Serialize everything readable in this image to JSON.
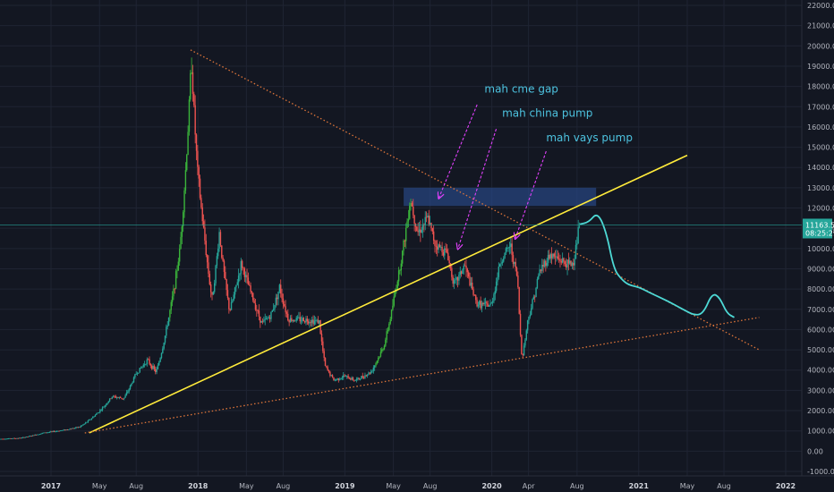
{
  "chart_data": {
    "type": "candlestick",
    "colors": {
      "background": "#131722",
      "grid": "#1f2433",
      "up": "#26a69a",
      "up_bright": "#3bb53b",
      "down": "#ef5350",
      "yellow_trend": "#ffeb3b",
      "dotted_trend": "#e0763a",
      "box": "#2a4a8c",
      "arrow": "#e040fb",
      "annotation": "#4dc3e0",
      "projection": "#4dd9d5",
      "price_tag": "#26a69a",
      "axis_text": "#b2b5be"
    },
    "y_axis": {
      "min": -1000,
      "max": 22000,
      "ticks": [
        "22000.00",
        "21000.00",
        "20000.00",
        "19000.00",
        "18000.00",
        "17000.00",
        "16000.00",
        "15000.00",
        "14000.00",
        "13000.00",
        "12000.00",
        "11000.00",
        "10000.00",
        "9000.00",
        "8000.00",
        "7000.00",
        "6000.00",
        "5000.00",
        "4000.00",
        "3000.00",
        "2000.00",
        "1000.00",
        "0.00",
        "-1000.00"
      ]
    },
    "x_axis": {
      "ticks": [
        {
          "label": "2017",
          "t": 2017.0,
          "year": true
        },
        {
          "label": "May",
          "t": 2017.33
        },
        {
          "label": "Aug",
          "t": 2017.58
        },
        {
          "label": "2018",
          "t": 2018.0,
          "year": true
        },
        {
          "label": "May",
          "t": 2018.33
        },
        {
          "label": "Aug",
          "t": 2018.58
        },
        {
          "label": "2019",
          "t": 2019.0,
          "year": true
        },
        {
          "label": "May",
          "t": 2019.33
        },
        {
          "label": "Aug",
          "t": 2019.58
        },
        {
          "label": "2020",
          "t": 2020.0,
          "year": true
        },
        {
          "label": "Apr",
          "t": 2020.25
        },
        {
          "label": "Aug",
          "t": 2020.58
        },
        {
          "label": "2021",
          "t": 2021.0,
          "year": true
        },
        {
          "label": "May",
          "t": 2021.33
        },
        {
          "label": "Aug",
          "t": 2021.58
        },
        {
          "label": "2022",
          "t": 2022.0,
          "year": true
        }
      ]
    },
    "price_path": [
      [
        2016.65,
        600
      ],
      [
        2016.8,
        650
      ],
      [
        2016.95,
        900
      ],
      [
        2017.1,
        1050
      ],
      [
        2017.2,
        1200
      ],
      [
        2017.3,
        1750
      ],
      [
        2017.42,
        2700
      ],
      [
        2017.5,
        2600
      ],
      [
        2017.58,
        3800
      ],
      [
        2017.66,
        4500
      ],
      [
        2017.72,
        3900
      ],
      [
        2017.8,
        6400
      ],
      [
        2017.88,
        9900
      ],
      [
        2017.93,
        15000
      ],
      [
        2017.96,
        19400
      ],
      [
        2018.0,
        14000
      ],
      [
        2018.05,
        10500
      ],
      [
        2018.1,
        7500
      ],
      [
        2018.15,
        10800
      ],
      [
        2018.22,
        6900
      ],
      [
        2018.3,
        9300
      ],
      [
        2018.38,
        7500
      ],
      [
        2018.44,
        6300
      ],
      [
        2018.5,
        6700
      ],
      [
        2018.56,
        8100
      ],
      [
        2018.62,
        6500
      ],
      [
        2018.72,
        6500
      ],
      [
        2018.83,
        6400
      ],
      [
        2018.87,
        4200
      ],
      [
        2018.93,
        3500
      ],
      [
        2019.0,
        3700
      ],
      [
        2019.08,
        3500
      ],
      [
        2019.18,
        3900
      ],
      [
        2019.27,
        5200
      ],
      [
        2019.35,
        8000
      ],
      [
        2019.45,
        12500
      ],
      [
        2019.5,
        10800
      ],
      [
        2019.57,
        11500
      ],
      [
        2019.62,
        10200
      ],
      [
        2019.7,
        9800
      ],
      [
        2019.75,
        8200
      ],
      [
        2019.82,
        9200
      ],
      [
        2019.9,
        7300
      ],
      [
        2019.95,
        7200
      ],
      [
        2020.0,
        7200
      ],
      [
        2020.06,
        9300
      ],
      [
        2020.13,
        10200
      ],
      [
        2020.18,
        8500
      ],
      [
        2020.21,
        4600
      ],
      [
        2020.25,
        6500
      ],
      [
        2020.33,
        8900
      ],
      [
        2020.4,
        9700
      ],
      [
        2020.48,
        9400
      ],
      [
        2020.52,
        9200
      ],
      [
        2020.56,
        9300
      ],
      [
        2020.6,
        11200
      ]
    ],
    "current_price_label": "11163.56",
    "countdown_label": "08:25:29",
    "current_price": 11163.56,
    "trendlines": [
      {
        "type": "yellow",
        "from": [
          2017.26,
          900
        ],
        "to": [
          2021.33,
          14600
        ]
      },
      {
        "type": "dotted-upper",
        "from": [
          2017.95,
          19800
        ],
        "to": [
          2021.82,
          5000
        ]
      },
      {
        "type": "dotted-lower",
        "from": [
          2017.23,
          900
        ],
        "to": [
          2021.82,
          6600
        ]
      }
    ],
    "zone": {
      "from_t": 2019.4,
      "to_t": 2020.71,
      "from_price": 12100,
      "to_price": 13000
    },
    "projection": [
      [
        2020.6,
        11200
      ],
      [
        2020.66,
        11300
      ],
      [
        2020.72,
        11800
      ],
      [
        2020.78,
        10800
      ],
      [
        2020.83,
        9000
      ],
      [
        2020.88,
        8500
      ],
      [
        2020.93,
        8200
      ],
      [
        2021.0,
        8100
      ],
      [
        2021.08,
        7800
      ],
      [
        2021.2,
        7400
      ],
      [
        2021.3,
        7000
      ],
      [
        2021.38,
        6700
      ],
      [
        2021.44,
        6800
      ],
      [
        2021.5,
        7800
      ],
      [
        2021.55,
        7600
      ],
      [
        2021.6,
        6800
      ],
      [
        2021.65,
        6600
      ]
    ],
    "annotations": [
      {
        "id": "cme",
        "text": "mah cme gap",
        "label_t": 2019.95,
        "label_price": 17700,
        "arrow_from": [
          2019.9,
          17100
        ],
        "arrow_to": [
          2019.64,
          12500
        ]
      },
      {
        "id": "china",
        "text": "mah china pump",
        "label_t": 2020.07,
        "label_price": 16500,
        "arrow_from": [
          2020.03,
          15900
        ],
        "arrow_to": [
          2019.77,
          10000
        ]
      },
      {
        "id": "vays",
        "text": "mah vays pump",
        "label_t": 2020.37,
        "label_price": 15300,
        "arrow_from": [
          2020.37,
          14800
        ],
        "arrow_to": [
          2020.16,
          10500
        ]
      }
    ]
  }
}
